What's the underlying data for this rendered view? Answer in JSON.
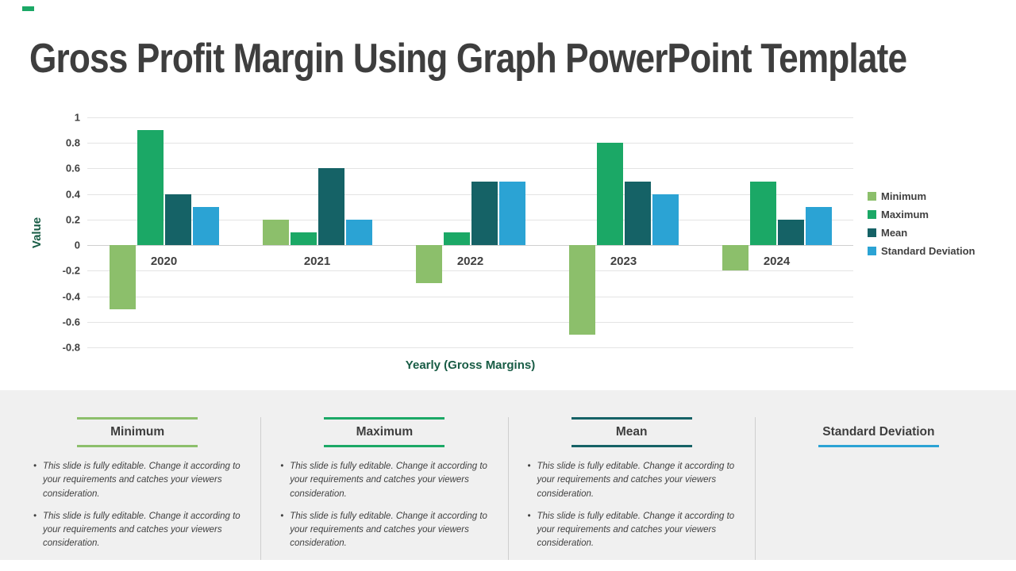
{
  "slide": {
    "title": "Gross Profit Margin Using Graph PowerPoint Template"
  },
  "chart_data": {
    "type": "bar",
    "title": "",
    "xlabel": "Yearly (Gross Margins)",
    "ylabel": "Value",
    "ylim": [
      -0.8,
      1
    ],
    "ytick_step": 0.2,
    "grid": true,
    "legend_position": "right",
    "categories": [
      "2020",
      "2021",
      "2022",
      "2023",
      "2024"
    ],
    "series": [
      {
        "name": "Minimum",
        "color": "#8CBF6B",
        "values": [
          -0.5,
          0.2,
          -0.3,
          -0.7,
          -0.2
        ]
      },
      {
        "name": "Maximum",
        "color": "#1BA866",
        "values": [
          0.9,
          0.1,
          0.1,
          0.8,
          0.5
        ]
      },
      {
        "name": "Mean",
        "color": "#156266",
        "values": [
          0.4,
          0.6,
          0.5,
          0.5,
          0.2
        ]
      },
      {
        "name": "Standard Deviation",
        "color": "#2BA3D4",
        "values": [
          0.3,
          0.2,
          0.5,
          0.4,
          0.3
        ]
      }
    ]
  },
  "cards": [
    {
      "title": "Minimum",
      "accent": "#8CBF6B",
      "bullets": [
        "This slide is fully editable. Change it according to your requirements and catches your viewers consideration.",
        "This slide is fully editable. Change it according to your requirements and catches your viewers consideration."
      ]
    },
    {
      "title": "Maximum",
      "accent": "#1BA866",
      "bullets": [
        "This slide is fully editable. Change it according to your requirements and catches your viewers consideration.",
        "This slide is fully editable. Change it according to your requirements and catches your viewers consideration."
      ]
    },
    {
      "title": "Mean",
      "accent": "#156266",
      "bullets": [
        "This slide is fully editable. Change it according to your requirements and catches your viewers consideration.",
        "This slide is fully editable. Change it according to your requirements and catches your viewers consideration."
      ]
    },
    {
      "title": "Standard Deviation",
      "accent": "#2BA3D4",
      "bullets": []
    }
  ]
}
